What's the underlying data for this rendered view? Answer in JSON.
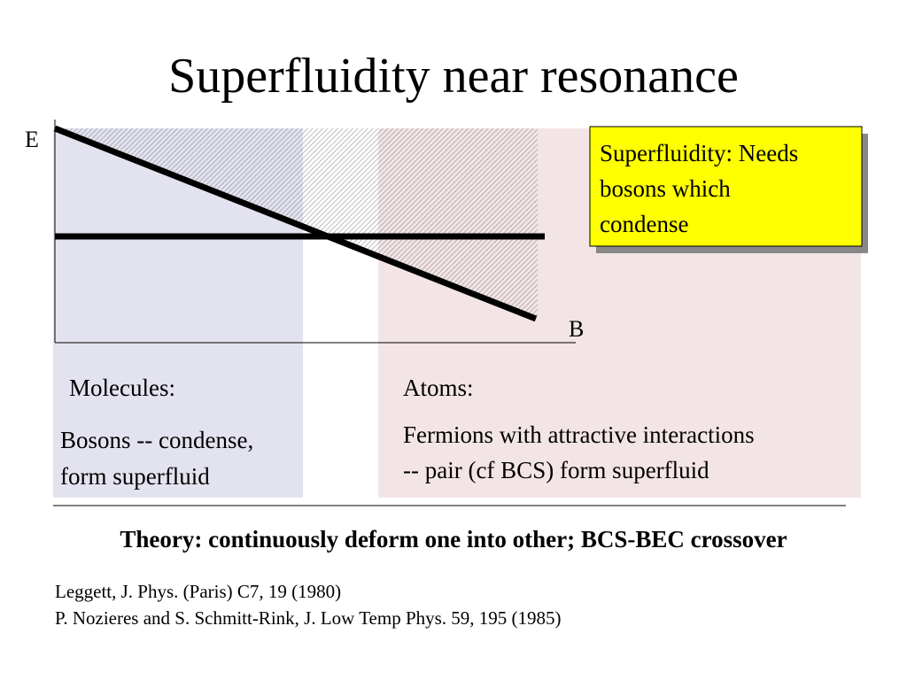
{
  "title": "Superfluidity near resonance",
  "axes": {
    "y_label": "E",
    "x_label": "B"
  },
  "callout": {
    "lines": [
      "Superfluidity: Needs",
      "bosons which",
      "condense"
    ]
  },
  "molecules": {
    "heading": "Molecules:",
    "lines": [
      "Bosons -- condense,",
      "form superfluid"
    ]
  },
  "atoms": {
    "heading": "Atoms:",
    "lines": [
      "Fermions with attractive interactions",
      "-- pair (cf BCS) form superfluid"
    ]
  },
  "theory": "Theory: continuously deform one into other; BCS-BEC crossover",
  "references": [
    "Leggett, J. Phys. (Paris) C7, 19 (1980)",
    "P. Nozieres and S. Schmitt-Rink, J. Low Temp Phys. 59, 195 (1985)"
  ]
}
